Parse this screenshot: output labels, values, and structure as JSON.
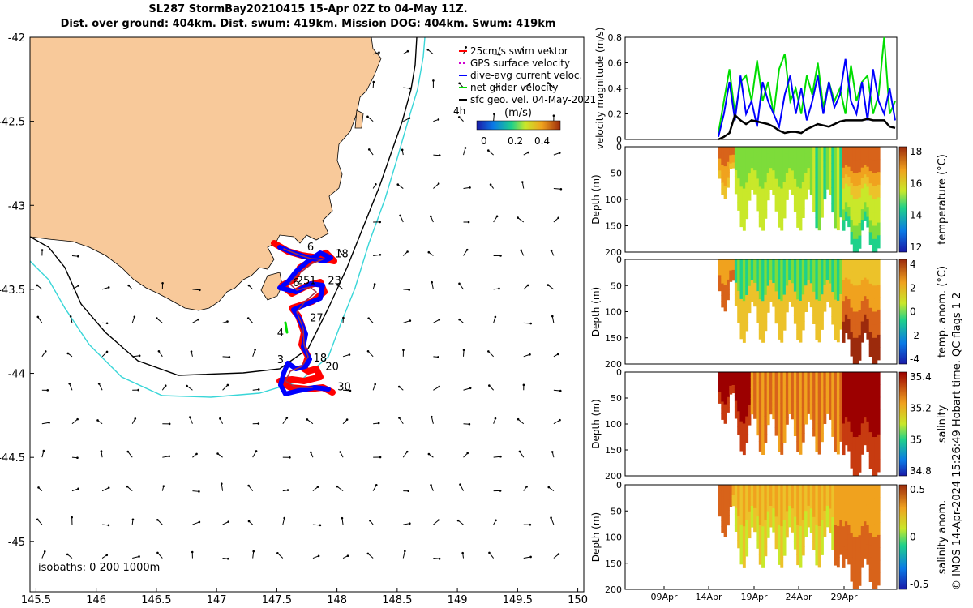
{
  "titles": {
    "line1": "SL287 StormBay20210415 15-Apr 02Z to 04-May 11Z.",
    "line2": "Dist. over ground: 404km. Dist. swum: 419km. Mission DOG: 404km. Swum: 419km"
  },
  "colors": {
    "land": "#f8c99a",
    "iso200": "#000000",
    "iso1000": "#39d6d8",
    "track_red": "#ff0000",
    "track_blue": "#0000ff",
    "green": "#00dd00"
  },
  "chart_data": [
    {
      "type": "map",
      "xlim": [
        145.45,
        150.05
      ],
      "ylim": [
        -45.3,
        -42.0
      ],
      "xticks": [
        "145.5",
        "146",
        "146.5",
        "147",
        "147.5",
        "148",
        "148.5",
        "149",
        "149.5",
        "150"
      ],
      "yticks": [
        "-42",
        "-42.5",
        "-43",
        "-43.5",
        "-44",
        "-44.5",
        "-45"
      ],
      "legend": [
        "25cm/s swim vector",
        "GPS surface velocity",
        "dive-avg current veloc.",
        "net glider velocity",
        "sfc geo. vel. 04-May-2021"
      ],
      "legend_extra": "4h",
      "colorbar": {
        "label": "(m/s)",
        "ticks": [
          "0",
          "0.2",
          "0.4"
        ]
      },
      "isobath_label": "isobaths: 0   200  1000m",
      "day_labels": [
        {
          "t": "6",
          "lon": 147.78,
          "lat": -43.27
        },
        {
          "t": "18",
          "lon": 148.04,
          "lat": -43.31
        },
        {
          "t": "25",
          "lon": 147.72,
          "lat": -43.47
        },
        {
          "t": "1",
          "lon": 147.8,
          "lat": -43.47
        },
        {
          "t": "6",
          "lon": 147.66,
          "lat": -43.48
        },
        {
          "t": "23",
          "lon": 147.98,
          "lat": -43.47
        },
        {
          "t": "27",
          "lon": 147.83,
          "lat": -43.69
        },
        {
          "t": "4",
          "lon": 147.53,
          "lat": -43.78
        },
        {
          "t": "3",
          "lon": 147.53,
          "lat": -43.94
        },
        {
          "t": "18",
          "lon": 147.86,
          "lat": -43.93
        },
        {
          "t": "20",
          "lon": 147.96,
          "lat": -43.98
        },
        {
          "t": "30",
          "lon": 148.06,
          "lat": -44.1
        }
      ]
    },
    {
      "type": "line",
      "ylabel": "velocity magnitude (m/s)",
      "ylim": [
        0,
        0.8
      ],
      "yticks": [
        "0",
        "0.2",
        "0.4",
        "0.6",
        "0.8"
      ],
      "series": [
        {
          "name": "net glider velocity",
          "color": "#00dd00",
          "values": [
            0.05,
            0.3,
            0.55,
            0.2,
            0.45,
            0.5,
            0.3,
            0.62,
            0.3,
            0.45,
            0.2,
            0.55,
            0.67,
            0.3,
            0.4,
            0.2,
            0.5,
            0.35,
            0.6,
            0.25,
            0.45,
            0.3,
            0.4,
            0.2,
            0.58,
            0.3,
            0.45,
            0.5,
            0.2,
            0.35,
            0.8,
            0.2,
            0.3
          ]
        },
        {
          "name": "dive-avg current veloc.",
          "color": "#0000ff",
          "values": [
            0.02,
            0.2,
            0.45,
            0.15,
            0.5,
            0.2,
            0.3,
            0.1,
            0.45,
            0.3,
            0.2,
            0.1,
            0.35,
            0.5,
            0.2,
            0.4,
            0.15,
            0.3,
            0.5,
            0.2,
            0.45,
            0.25,
            0.35,
            0.63,
            0.3,
            0.2,
            0.45,
            0.15,
            0.55,
            0.3,
            0.2,
            0.4,
            0.15
          ]
        },
        {
          "name": "sfc geo. vel.",
          "color": "#000000",
          "values": [
            0.0,
            0.02,
            0.05,
            0.19,
            0.15,
            0.12,
            0.15,
            0.14,
            0.13,
            0.12,
            0.1,
            0.07,
            0.05,
            0.06,
            0.06,
            0.05,
            0.08,
            0.1,
            0.12,
            0.11,
            0.1,
            0.12,
            0.14,
            0.15,
            0.15,
            0.15,
            0.15,
            0.16,
            0.15,
            0.15,
            0.15,
            0.1,
            0.09
          ]
        }
      ]
    },
    {
      "type": "heatmap",
      "ylabel": "Depth (m)",
      "clabel": "temperature (°C)",
      "yticks": [
        "0",
        "50",
        "100",
        "150",
        "200"
      ],
      "cticks": [
        "18",
        "16",
        "14",
        "12"
      ]
    },
    {
      "type": "heatmap",
      "ylabel": "Depth (m)",
      "clabel": "temp. anom. (°C)",
      "yticks": [
        "0",
        "50",
        "100",
        "150",
        "200"
      ],
      "cticks": [
        "4",
        "2",
        "0",
        "-2",
        "-4"
      ]
    },
    {
      "type": "heatmap",
      "ylabel": "Depth (m)",
      "clabel": "salinity",
      "yticks": [
        "0",
        "50",
        "100",
        "150",
        "200"
      ],
      "cticks": [
        "35.4",
        "35.2",
        "35",
        "34.8"
      ]
    },
    {
      "type": "heatmap",
      "ylabel": "Depth (m)",
      "clabel": "salinity anom.",
      "yticks": [
        "0",
        "50",
        "100",
        "150",
        "200"
      ],
      "cticks": [
        "0.5",
        "0",
        "-0.5"
      ],
      "xticks": [
        "09Apr",
        "14Apr",
        "19Apr",
        "24Apr",
        "29Apr"
      ]
    }
  ],
  "side_note": "© IMOS 14-Apr-2024 15:26:49 Hobart time. QC flags 1  2"
}
